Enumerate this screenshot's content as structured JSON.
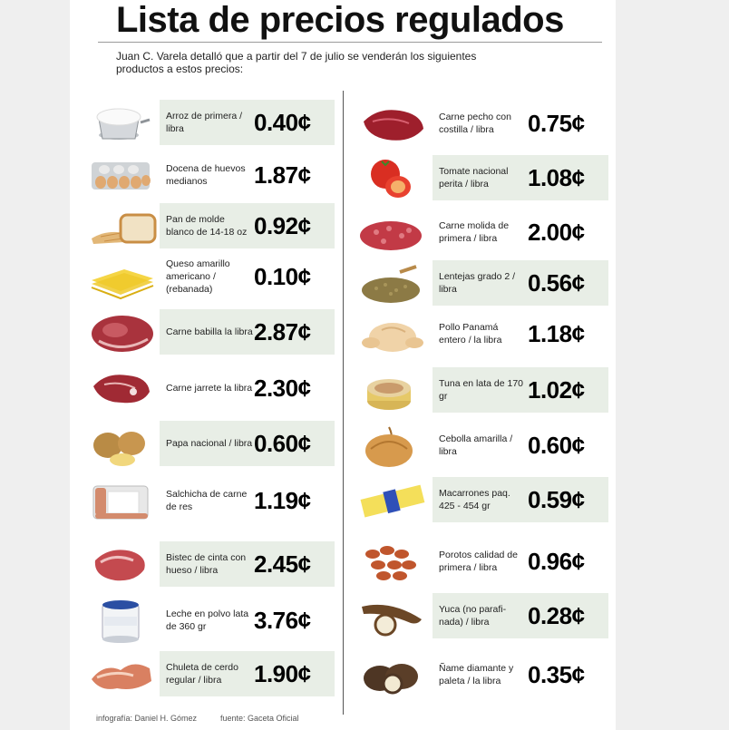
{
  "header": {
    "title": "Lista de precios regulados",
    "subtitle": "Juan C. Varela detalló que a partir del 7 de julio se venderán los siguientes productos a estos precios:"
  },
  "left_items": [
    {
      "label": "Arroz de primera / libra",
      "price": "0.40¢",
      "icon": "rice-icon",
      "shaded": true
    },
    {
      "label": "Docena de huevos medianos",
      "price": "1.87¢",
      "icon": "eggs-icon",
      "shaded": false
    },
    {
      "label": "Pan de molde blanco de 14-18 oz",
      "price": "0.92¢",
      "icon": "bread-icon",
      "shaded": true
    },
    {
      "label": "Queso amarillo americano / (rebanada)",
      "price": "0.10¢",
      "icon": "cheese-icon",
      "shaded": false
    },
    {
      "label": "Carne babilla la libra",
      "price": "2.87¢",
      "icon": "beef-icon",
      "shaded": true
    },
    {
      "label": "Carne jarrete la libra",
      "price": "2.30¢",
      "icon": "beef-shank-icon",
      "shaded": false
    },
    {
      "label": "Papa nacional / libra",
      "price": "0.60¢",
      "icon": "potato-icon",
      "shaded": true
    },
    {
      "label": "Salchicha de carne de res",
      "price": "1.19¢",
      "icon": "sausage-icon",
      "shaded": false
    },
    {
      "label": "Bistec de cinta con hueso / libra",
      "price": "2.45¢",
      "icon": "steak-icon",
      "shaded": true
    },
    {
      "label": "Leche en polvo lata de 360 gr",
      "price": "3.76¢",
      "icon": "milk-can-icon",
      "shaded": false
    },
    {
      "label": "Chuleta de cerdo regular / libra",
      "price": "1.90¢",
      "icon": "pork-chop-icon",
      "shaded": true
    }
  ],
  "right_items": [
    {
      "label": "Carne pecho con costilla / libra",
      "price": "0.75¢",
      "icon": "brisket-icon",
      "shaded": false
    },
    {
      "label": "Tomate nacional perita / libra",
      "price": "1.08¢",
      "icon": "tomato-icon",
      "shaded": true
    },
    {
      "label": "Carne molida de primera / libra",
      "price": "2.00¢",
      "icon": "ground-beef-icon",
      "shaded": false
    },
    {
      "label": "Lentejas grado 2 / libra",
      "price": "0.56¢",
      "icon": "lentils-icon",
      "shaded": true
    },
    {
      "label": "Pollo Panamá entero / la libra",
      "price": "1.18¢",
      "icon": "chicken-icon",
      "shaded": false
    },
    {
      "label": "Tuna en lata de 170 gr",
      "price": "1.02¢",
      "icon": "tuna-can-icon",
      "shaded": true
    },
    {
      "label": "Cebolla amarilla / libra",
      "price": "0.60¢",
      "icon": "onion-icon",
      "shaded": false
    },
    {
      "label": "Macarrones paq. 425 - 454 gr",
      "price": "0.59¢",
      "icon": "pasta-icon",
      "shaded": true
    },
    {
      "label": "Porotos calidad de primera / libra",
      "price": "0.96¢",
      "icon": "beans-icon",
      "shaded": false
    },
    {
      "label": "Yuca (no parafi- nada) / libra",
      "price": "0.28¢",
      "icon": "yuca-icon",
      "shaded": true
    },
    {
      "label": "Ñame diamante y paleta / la libra",
      "price": "0.35¢",
      "icon": "yam-icon",
      "shaded": false
    }
  ],
  "footer": {
    "credit": "infografía: Daniel H. Gómez",
    "source": "fuente: Gaceta Oficial"
  },
  "colors": {
    "shade": "#e8eee6",
    "divider": "#555555"
  }
}
